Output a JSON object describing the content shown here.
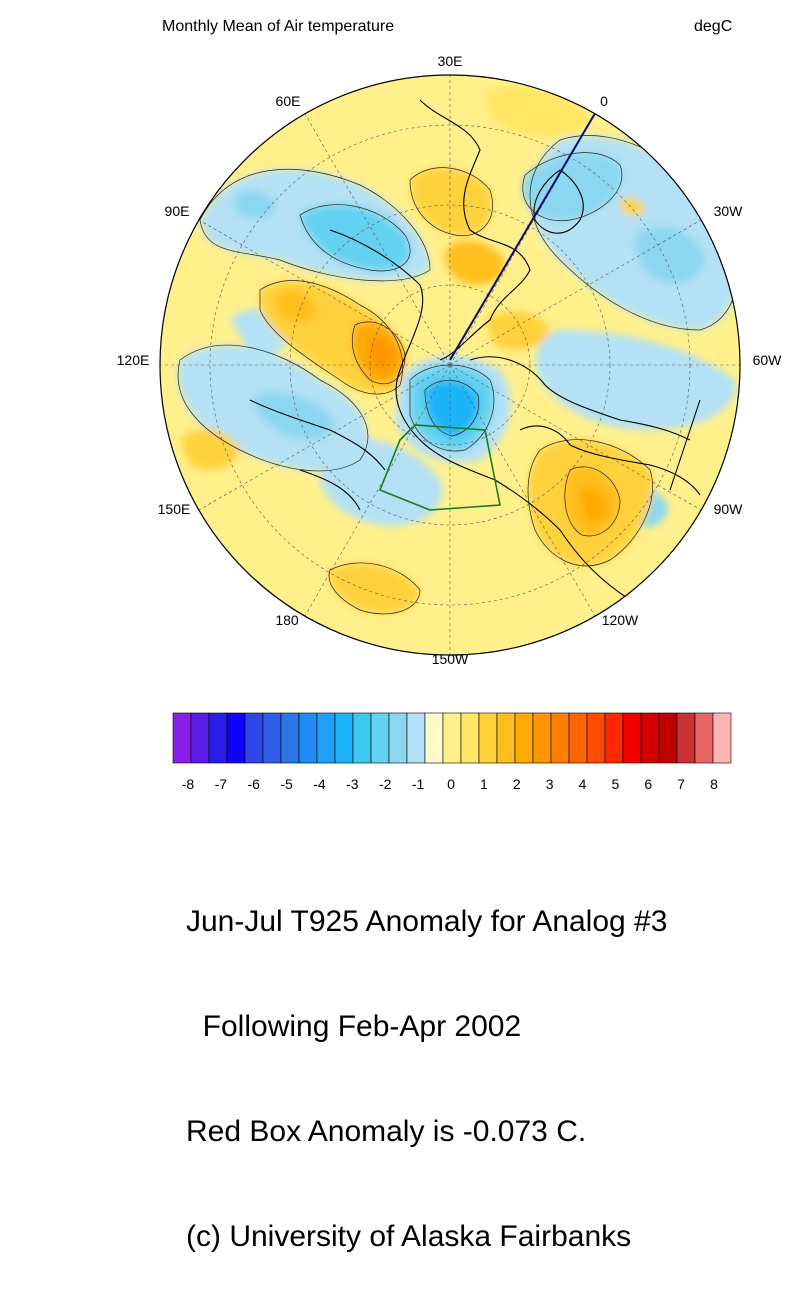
{
  "header": {
    "title": "Monthly Mean of Air temperature",
    "units": "degC"
  },
  "map": {
    "projection": "north-polar-stereographic",
    "center_longitude": "150W",
    "longitude_labels": [
      "30E",
      "0",
      "30W",
      "60W",
      "90W",
      "120W",
      "150W",
      "180",
      "150E",
      "120E",
      "90E",
      "60E"
    ],
    "regions": [
      {
        "name": "warm-eurasia-north",
        "anomaly": 2
      },
      {
        "name": "warm-scandinavia",
        "anomaly": 3
      },
      {
        "name": "cold-western-russia",
        "anomaly": -2
      },
      {
        "name": "cold-east-siberia-arctic",
        "anomaly": -4
      },
      {
        "name": "warm-central-siberia",
        "anomaly": 4
      },
      {
        "name": "warm-western-us",
        "anomaly": 4
      },
      {
        "name": "cold-north-atlantic",
        "anomaly": -2
      },
      {
        "name": "cold-east-asia",
        "anomaly": -2
      },
      {
        "name": "warm-north-pacific",
        "anomaly": 2
      }
    ]
  },
  "colorbar": {
    "tick_labels": [
      "-8",
      "-7",
      "-6",
      "-5",
      "-4",
      "-3",
      "-2",
      "-1",
      "0",
      "1",
      "2",
      "3",
      "4",
      "5",
      "6",
      "7",
      "8"
    ],
    "colors": [
      "#8b1ee6",
      "#5a1ee6",
      "#2a1ee6",
      "#0f00ff",
      "#2e46e8",
      "#2e5ee8",
      "#2e76e8",
      "#1e8cf0",
      "#1ea0f8",
      "#1eb4f8",
      "#3cc8f0",
      "#64d2f0",
      "#8cd7f0",
      "#b4e1f5",
      "#fffac8",
      "#fff08c",
      "#ffe664",
      "#ffd23c",
      "#ffbe1e",
      "#ffaa00",
      "#ff9600",
      "#ff7d00",
      "#ff6400",
      "#ff4b00",
      "#ff2800",
      "#f00000",
      "#d70000",
      "#be0000",
      "#c83232",
      "#e66464",
      "#ffb4b4"
    ]
  },
  "caption": {
    "line1": "Jun-Jul T925 Anomaly for Analog #3",
    "line2": "  Following Feb-Apr 2002",
    "line3": "Red Box Anomaly is -0.073 C.",
    "line4": "(c) University of Alaska Fairbanks"
  }
}
